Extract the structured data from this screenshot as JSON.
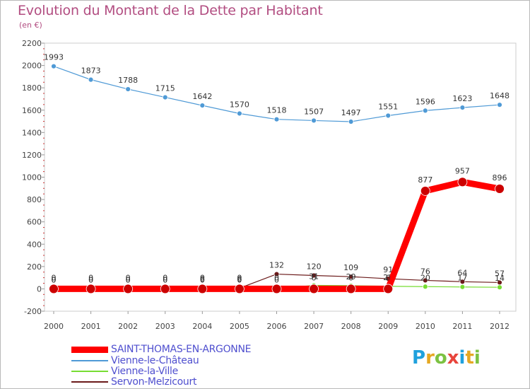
{
  "header": {
    "title": "Evolution du Montant de la Dette par Habitant",
    "subtitle": "(en €)"
  },
  "logo": {
    "text": "Proxiti",
    "colors": [
      "#1fa1dd",
      "#e5a823",
      "#7cc242",
      "#e8453c",
      "#1fa1dd",
      "#e5a823",
      "#7cc242"
    ]
  },
  "chart_data": {
    "type": "line",
    "title": "Evolution du Montant de la Dette par Habitant",
    "subtitle": "(en €)",
    "xlabel": "",
    "ylabel": "",
    "x": [
      "2000",
      "2001",
      "2002",
      "2003",
      "2004",
      "2005",
      "2006",
      "2007",
      "2008",
      "2009",
      "2010",
      "2011",
      "2012"
    ],
    "ylim": [
      -200,
      2200
    ],
    "yticks": [
      -200,
      0,
      200,
      400,
      600,
      800,
      1000,
      1200,
      1400,
      1600,
      1800,
      2000,
      2200
    ],
    "grid": false,
    "legend": "bottom-left",
    "series": [
      {
        "name": "SAINT-THOMAS-EN-ARGONNE",
        "color": "#ff0000",
        "values": [
          0,
          0,
          0,
          0,
          0,
          0,
          0,
          0,
          0,
          0,
          877,
          957,
          896
        ],
        "labels": [
          "0",
          "0",
          "0",
          "0",
          "0",
          "0",
          "0",
          "0",
          "0",
          "0",
          "877",
          "957",
          "896"
        ]
      },
      {
        "name": "Vienne-le-Château",
        "color": "#4f9ad6",
        "values": [
          1993,
          1873,
          1788,
          1715,
          1642,
          1570,
          1518,
          1507,
          1497,
          1551,
          1596,
          1623,
          1648
        ],
        "labels": [
          "1993",
          "1873",
          "1788",
          "1715",
          "1642",
          "1570",
          "1518",
          "1507",
          "1497",
          "1551",
          "1596",
          "1623",
          "1648"
        ]
      },
      {
        "name": "Vienne-la-Ville",
        "color": "#77dd33",
        "values": [
          0,
          0,
          0,
          0,
          0,
          0,
          0,
          31,
          29,
          23,
          20,
          17,
          14
        ],
        "labels": [
          "0",
          "0",
          "0",
          "0",
          "0",
          "0",
          "0",
          "31",
          "29",
          "23",
          "20",
          "17",
          "14"
        ]
      },
      {
        "name": "Servon-Melzicourt",
        "color": "#6b1a1a",
        "values": [
          0,
          0,
          0,
          0,
          6,
          6,
          132,
          120,
          109,
          91,
          76,
          64,
          57
        ],
        "labels": [
          "0",
          "0",
          "0",
          "0",
          "6",
          "6",
          "132",
          "120",
          "109",
          "91",
          "76",
          "64",
          "57"
        ]
      }
    ]
  }
}
